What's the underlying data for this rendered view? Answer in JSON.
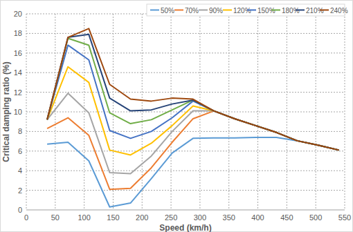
{
  "chart_data": {
    "type": "line",
    "x_label": "Speed (km/h)",
    "y_label": "Critical damping ratio (%)",
    "x": [
      36,
      72,
      108,
      144,
      180,
      216,
      252,
      288,
      324,
      360,
      396,
      432,
      468,
      504,
      540
    ],
    "series": [
      {
        "name": "50%",
        "color": "#5b9bd5",
        "values": [
          6.7,
          6.9,
          5.0,
          0.3,
          0.7,
          3.2,
          5.8,
          7.3,
          7.35,
          7.35,
          7.4,
          7.4,
          7.05,
          6.6,
          6.1
        ]
      },
      {
        "name": "70%",
        "color": "#ed7d31",
        "values": [
          8.3,
          9.4,
          7.6,
          2.1,
          2.2,
          4.3,
          6.9,
          9.3,
          10.1,
          9.3,
          8.6,
          7.9,
          7.05,
          6.6,
          6.1
        ]
      },
      {
        "name": "90%",
        "color": "#a5a5a5",
        "values": [
          9.2,
          11.9,
          9.9,
          3.8,
          3.7,
          5.5,
          8.0,
          10.1,
          10.1,
          9.3,
          8.6,
          7.9,
          7.05,
          6.6,
          6.1
        ]
      },
      {
        "name": "120%",
        "color": "#ffc000",
        "values": [
          9.2,
          14.6,
          13.0,
          6.1,
          5.6,
          6.8,
          8.6,
          10.6,
          10.1,
          9.3,
          8.6,
          7.9,
          7.05,
          6.6,
          6.1
        ]
      },
      {
        "name": "150%",
        "color": "#4472c4",
        "values": [
          9.2,
          16.8,
          15.3,
          8.1,
          7.3,
          8.0,
          9.4,
          11.1,
          10.1,
          9.3,
          8.6,
          7.9,
          7.05,
          6.6,
          6.1
        ]
      },
      {
        "name": "180%",
        "color": "#70ad47",
        "values": [
          9.2,
          17.5,
          16.8,
          9.9,
          8.8,
          9.2,
          10.2,
          11.2,
          10.1,
          9.3,
          8.6,
          7.9,
          7.05,
          6.6,
          6.1
        ]
      },
      {
        "name": "210%",
        "color": "#264478",
        "values": [
          9.2,
          17.6,
          17.9,
          11.4,
          10.1,
          10.2,
          10.8,
          11.2,
          10.1,
          9.3,
          8.6,
          7.9,
          7.05,
          6.6,
          6.1
        ]
      },
      {
        "name": "240%",
        "color": "#9e480e",
        "values": [
          9.2,
          17.6,
          18.5,
          12.8,
          11.3,
          11.1,
          11.4,
          11.3,
          10.1,
          9.3,
          8.6,
          7.9,
          7.05,
          6.6,
          6.1
        ]
      }
    ],
    "xlim": [
      0,
      550
    ],
    "xticks": [
      0,
      50,
      100,
      150,
      200,
      250,
      300,
      350,
      400,
      450,
      500,
      550
    ],
    "ylim": [
      0,
      20
    ],
    "yticks": [
      0,
      2,
      4,
      6,
      8,
      10,
      12,
      14,
      16,
      18,
      20
    ],
    "grid": true,
    "legend": "top-right"
  }
}
